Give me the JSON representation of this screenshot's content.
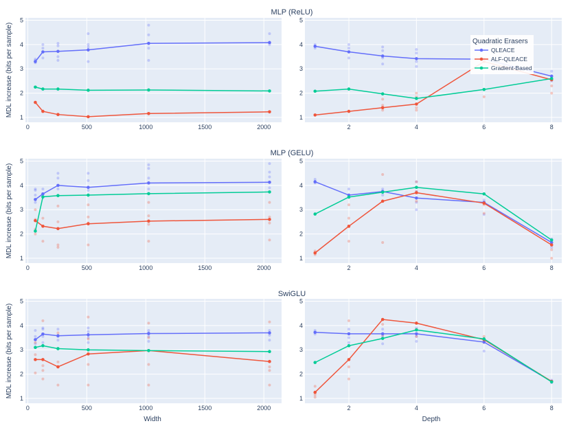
{
  "legend": {
    "title": "Quadratic Erasers",
    "items": [
      {
        "name": "QLEACE",
        "color": "#636efa"
      },
      {
        "name": "ALF-QLEACE",
        "color": "#ef553b"
      },
      {
        "name": "Gradient-Based",
        "color": "#00cc96"
      }
    ]
  },
  "ylabel": "MDL increase (bits per sample)",
  "x_width_label": "Width",
  "x_depth_label": "Depth",
  "chart_data": [
    {
      "type": "line",
      "title": "MLP (ReLU)",
      "xlabel": "",
      "ylabel": "MDL increase (bits per sample)",
      "x": [
        64,
        128,
        256,
        512,
        1024,
        2048
      ],
      "xlim": [
        -20,
        2150
      ],
      "xticks": [
        0,
        500,
        1000,
        1500,
        2000
      ],
      "ylim": [
        0.8,
        5.1
      ],
      "yticks": [
        1,
        2,
        3,
        4,
        5
      ],
      "series": [
        {
          "name": "QLEACE",
          "values": [
            3.3,
            3.7,
            3.72,
            3.78,
            4.05,
            4.08
          ],
          "points": [
            [
              64,
              3.25
            ],
            [
              64,
              3.35
            ],
            [
              64,
              3.4
            ],
            [
              128,
              3.45
            ],
            [
              128,
              3.85
            ],
            [
              128,
              4.0
            ],
            [
              256,
              3.35
            ],
            [
              256,
              3.5
            ],
            [
              256,
              3.95
            ],
            [
              256,
              4.05
            ],
            [
              512,
              3.3
            ],
            [
              512,
              3.9
            ],
            [
              512,
              4.0
            ],
            [
              512,
              4.45
            ],
            [
              1024,
              3.35
            ],
            [
              1024,
              3.85
            ],
            [
              1024,
              4.4
            ],
            [
              1024,
              4.8
            ],
            [
              2048,
              4.0
            ],
            [
              2048,
              4.1
            ],
            [
              2048,
              4.45
            ]
          ]
        },
        {
          "name": "ALF-QLEACE",
          "values": [
            1.62,
            1.25,
            1.12,
            1.03,
            1.16,
            1.23
          ],
          "points": []
        },
        {
          "name": "Gradient-Based",
          "values": [
            2.25,
            2.17,
            2.17,
            2.12,
            2.13,
            2.09
          ],
          "points": []
        }
      ]
    },
    {
      "type": "line",
      "title": "",
      "xlabel": "",
      "ylabel": "",
      "x": [
        1,
        2,
        3,
        4,
        6,
        8
      ],
      "xlim": [
        0.7,
        8.3
      ],
      "xticks": [
        2,
        4,
        6,
        8
      ],
      "ylim": [
        0.8,
        5.1
      ],
      "yticks": [
        1,
        2,
        3,
        4,
        5
      ],
      "series": [
        {
          "name": "QLEACE",
          "values": [
            3.93,
            3.7,
            3.53,
            3.42,
            3.4,
            2.7
          ],
          "points": [
            [
              1,
              3.85
            ],
            [
              1,
              4.0
            ],
            [
              2,
              3.45
            ],
            [
              2,
              3.85
            ],
            [
              2,
              4.0
            ],
            [
              3,
              3.2
            ],
            [
              3,
              3.45
            ],
            [
              3,
              3.75
            ],
            [
              3,
              3.9
            ],
            [
              4,
              3.1
            ],
            [
              4,
              3.3
            ],
            [
              4,
              3.65
            ],
            [
              4,
              3.8
            ],
            [
              8,
              2.5
            ],
            [
              8,
              2.9
            ]
          ]
        },
        {
          "name": "ALF-QLEACE",
          "values": [
            1.1,
            1.25,
            1.4,
            1.55,
            3.3,
            2.55
          ],
          "points": [
            [
              3,
              1.3
            ],
            [
              3,
              1.5
            ],
            [
              3,
              1.75
            ],
            [
              4,
              1.3
            ],
            [
              4,
              1.4
            ],
            [
              4,
              1.85
            ],
            [
              4,
              2.0
            ],
            [
              6,
              1.85
            ],
            [
              8,
              2.0
            ],
            [
              8,
              2.3
            ]
          ]
        },
        {
          "name": "Gradient-Based",
          "values": [
            2.08,
            2.17,
            1.97,
            1.78,
            2.15,
            2.6
          ],
          "points": []
        }
      ]
    },
    {
      "type": "line",
      "title": "MLP (GELU)",
      "xlabel": "",
      "ylabel": "MDL increase (bits per sample)",
      "x": [
        64,
        128,
        256,
        512,
        1024,
        2048
      ],
      "xlim": [
        -20,
        2150
      ],
      "xticks": [
        0,
        500,
        1000,
        1500,
        2000
      ],
      "ylim": [
        0.8,
        5.1
      ],
      "yticks": [
        1,
        2,
        3,
        4,
        5
      ],
      "series": [
        {
          "name": "QLEACE",
          "values": [
            3.42,
            3.65,
            4.0,
            3.92,
            4.1,
            4.13
          ],
          "points": [
            [
              64,
              3.3
            ],
            [
              64,
              3.6
            ],
            [
              64,
              3.8
            ],
            [
              64,
              3.85
            ],
            [
              128,
              3.5
            ],
            [
              128,
              3.85
            ],
            [
              256,
              3.85
            ],
            [
              256,
              4.3
            ],
            [
              256,
              4.5
            ],
            [
              512,
              3.8
            ],
            [
              512,
              4.2
            ],
            [
              512,
              4.5
            ],
            [
              1024,
              3.85
            ],
            [
              1024,
              4.3
            ],
            [
              1024,
              4.7
            ],
            [
              1024,
              4.85
            ],
            [
              2048,
              3.9
            ],
            [
              2048,
              4.35
            ],
            [
              2048,
              4.55
            ],
            [
              2048,
              4.9
            ]
          ]
        },
        {
          "name": "ALF-QLEACE",
          "values": [
            2.55,
            2.32,
            2.22,
            2.42,
            2.53,
            2.6
          ],
          "points": [
            [
              64,
              2.0
            ],
            [
              64,
              2.2
            ],
            [
              64,
              2.6
            ],
            [
              64,
              3.0
            ],
            [
              128,
              1.7
            ],
            [
              128,
              2.65
            ],
            [
              256,
              1.45
            ],
            [
              256,
              1.55
            ],
            [
              256,
              2.5
            ],
            [
              256,
              3.15
            ],
            [
              512,
              1.55
            ],
            [
              512,
              2.45
            ],
            [
              512,
              2.7
            ],
            [
              512,
              3.2
            ],
            [
              1024,
              1.7
            ],
            [
              1024,
              2.4
            ],
            [
              1024,
              2.75
            ],
            [
              1024,
              3.3
            ],
            [
              2048,
              1.75
            ],
            [
              2048,
              2.45
            ],
            [
              2048,
              2.7
            ],
            [
              2048,
              3.3
            ]
          ]
        },
        {
          "name": "Gradient-Based",
          "values": [
            2.12,
            3.53,
            3.58,
            3.6,
            3.66,
            3.73
          ],
          "points": []
        }
      ]
    },
    {
      "type": "line",
      "title": "",
      "xlabel": "",
      "ylabel": "",
      "x": [
        1,
        2,
        3,
        4,
        6,
        8
      ],
      "xlim": [
        0.7,
        8.3
      ],
      "xticks": [
        2,
        4,
        6,
        8
      ],
      "ylim": [
        0.8,
        5.1
      ],
      "yticks": [
        1,
        2,
        3,
        4,
        5
      ],
      "series": [
        {
          "name": "QLEACE",
          "values": [
            4.15,
            3.6,
            3.75,
            3.48,
            3.3,
            1.65
          ],
          "points": [
            [
              1,
              4.1
            ],
            [
              1,
              4.25
            ],
            [
              2,
              3.5
            ],
            [
              2,
              3.85
            ],
            [
              3,
              3.6
            ],
            [
              3,
              3.85
            ],
            [
              4,
              3.0
            ],
            [
              4,
              3.3
            ],
            [
              4,
              3.75
            ],
            [
              4,
              4.15
            ],
            [
              6,
              2.8
            ],
            [
              6,
              3.4
            ],
            [
              8,
              1.45
            ],
            [
              8,
              1.8
            ]
          ]
        },
        {
          "name": "ALF-QLEACE",
          "values": [
            1.22,
            2.32,
            3.35,
            3.7,
            3.27,
            1.55
          ],
          "points": [
            [
              1,
              1.15
            ],
            [
              1,
              1.3
            ],
            [
              2,
              1.7
            ],
            [
              2,
              2.3
            ],
            [
              2,
              2.65
            ],
            [
              2,
              3.2
            ],
            [
              3,
              1.65
            ],
            [
              3,
              4.45
            ],
            [
              4,
              3.35
            ],
            [
              4,
              3.75
            ],
            [
              4,
              4.15
            ],
            [
              6,
              2.85
            ],
            [
              6,
              3.2
            ],
            [
              8,
              1.0
            ],
            [
              8,
              1.35
            ]
          ]
        },
        {
          "name": "Gradient-Based",
          "values": [
            2.82,
            3.52,
            3.72,
            3.92,
            3.65,
            1.75
          ],
          "points": []
        }
      ]
    },
    {
      "type": "line",
      "title": "SwiGLU",
      "xlabel": "Width",
      "ylabel": "MDL increase (bits per sample)",
      "x": [
        64,
        128,
        256,
        512,
        1024,
        2048
      ],
      "xlim": [
        -20,
        2150
      ],
      "xticks": [
        0,
        500,
        1000,
        1500,
        2000
      ],
      "ylim": [
        0.8,
        5.1
      ],
      "yticks": [
        1,
        2,
        3,
        4,
        5
      ],
      "series": [
        {
          "name": "QLEACE",
          "values": [
            3.42,
            3.65,
            3.58,
            3.62,
            3.67,
            3.7
          ],
          "points": [
            [
              64,
              3.25
            ],
            [
              64,
              3.55
            ],
            [
              64,
              3.8
            ],
            [
              128,
              3.3
            ],
            [
              128,
              3.55
            ],
            [
              128,
              3.85
            ],
            [
              128,
              3.9
            ],
            [
              256,
              3.4
            ],
            [
              256,
              3.55
            ],
            [
              256,
              3.85
            ],
            [
              512,
              3.3
            ],
            [
              512,
              3.5
            ],
            [
              512,
              3.75
            ],
            [
              512,
              3.9
            ],
            [
              1024,
              3.35
            ],
            [
              1024,
              3.55
            ],
            [
              1024,
              3.7
            ],
            [
              1024,
              3.8
            ],
            [
              2048,
              3.4
            ],
            [
              2048,
              3.6
            ],
            [
              2048,
              3.8
            ]
          ]
        },
        {
          "name": "ALF-QLEACE",
          "values": [
            2.6,
            2.6,
            2.3,
            2.83,
            2.97,
            2.52
          ],
          "points": [
            [
              64,
              2.05
            ],
            [
              64,
              2.8
            ],
            [
              64,
              3.3
            ],
            [
              128,
              1.8
            ],
            [
              128,
              2.15
            ],
            [
              128,
              2.35
            ],
            [
              128,
              4.2
            ],
            [
              256,
              1.55
            ],
            [
              256,
              2.5
            ],
            [
              256,
              3.7
            ],
            [
              512,
              1.55
            ],
            [
              512,
              2.4
            ],
            [
              512,
              3.45
            ],
            [
              512,
              4.35
            ],
            [
              1024,
              1.55
            ],
            [
              1024,
              2.4
            ],
            [
              1024,
              3.5
            ],
            [
              1024,
              4.1
            ],
            [
              2048,
              1.55
            ],
            [
              2048,
              2.15
            ],
            [
              2048,
              2.3
            ],
            [
              2048,
              4.15
            ]
          ]
        },
        {
          "name": "Gradient-Based",
          "values": [
            3.1,
            3.17,
            3.05,
            3.0,
            2.97,
            2.93
          ],
          "points": []
        }
      ]
    },
    {
      "type": "line",
      "title": "",
      "xlabel": "Depth",
      "ylabel": "",
      "x": [
        1,
        2,
        3,
        4,
        6,
        8
      ],
      "xlim": [
        0.7,
        8.3
      ],
      "xticks": [
        2,
        4,
        6,
        8
      ],
      "ylim": [
        0.8,
        5.1
      ],
      "yticks": [
        1,
        2,
        3,
        4,
        5
      ],
      "series": [
        {
          "name": "QLEACE",
          "values": [
            3.72,
            3.66,
            3.66,
            3.66,
            3.32,
            1.7
          ],
          "points": [
            [
              1,
              3.65
            ],
            [
              1,
              3.8
            ],
            [
              2,
              3.3
            ],
            [
              2,
              3.5
            ],
            [
              2,
              3.85
            ],
            [
              3,
              3.25
            ],
            [
              3,
              3.55
            ],
            [
              3,
              3.85
            ],
            [
              4,
              3.35
            ],
            [
              4,
              3.55
            ],
            [
              4,
              3.9
            ],
            [
              6,
              2.95
            ],
            [
              6,
              3.4
            ],
            [
              8,
              1.65
            ],
            [
              8,
              1.75
            ]
          ]
        },
        {
          "name": "ALF-QLEACE",
          "values": [
            1.25,
            2.6,
            4.25,
            4.1,
            3.42,
            1.7
          ],
          "points": [
            [
              1,
              1.05
            ],
            [
              1,
              1.15
            ],
            [
              1,
              1.5
            ],
            [
              2,
              1.8
            ],
            [
              2,
              2.3
            ],
            [
              2,
              4.2
            ],
            [
              3,
              3.6
            ],
            [
              3,
              4.05
            ],
            [
              4,
              3.55
            ],
            [
              4,
              3.85
            ],
            [
              6,
              3.3
            ],
            [
              6,
              3.55
            ]
          ]
        },
        {
          "name": "Gradient-Based",
          "values": [
            2.48,
            3.17,
            3.47,
            3.82,
            3.45,
            1.68
          ],
          "points": []
        }
      ]
    }
  ]
}
